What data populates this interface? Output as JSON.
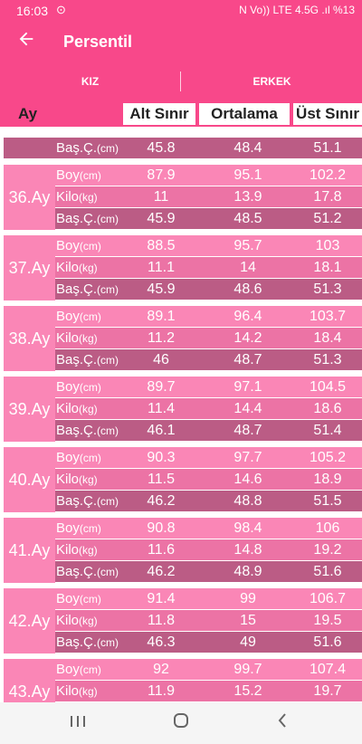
{
  "status": {
    "time": "16:03",
    "right": "N  Vo)) LTE 4.5G .ıl %13"
  },
  "appbar": {
    "back_icon": "arrow-left-icon",
    "title": "Persentil"
  },
  "tabs": [
    {
      "label": "KIZ",
      "active": true
    },
    {
      "label": "ERKEK",
      "active": false
    }
  ],
  "table_header": {
    "ay": "Ay",
    "alt": "Alt Sınır",
    "ort": "Ortalama",
    "ust": "Üst Sınır"
  },
  "labels": {
    "boy": "Boy",
    "boy_unit": "(cm)",
    "kilo": "Kilo",
    "kilo_unit": "(kg)",
    "bas": "Baş.Ç.",
    "bas_unit": "(cm)"
  },
  "partial_top": {
    "bas": [
      "45.8",
      "48.4",
      "51.1"
    ]
  },
  "groups": [
    {
      "age": "36.Ay",
      "boy": [
        "87.9",
        "95.1",
        "102.2"
      ],
      "kilo": [
        "11",
        "13.9",
        "17.8"
      ],
      "bas": [
        "45.9",
        "48.5",
        "51.2"
      ]
    },
    {
      "age": "37.Ay",
      "boy": [
        "88.5",
        "95.7",
        "103"
      ],
      "kilo": [
        "11.1",
        "14",
        "18.1"
      ],
      "bas": [
        "45.9",
        "48.6",
        "51.3"
      ]
    },
    {
      "age": "38.Ay",
      "boy": [
        "89.1",
        "96.4",
        "103.7"
      ],
      "kilo": [
        "11.2",
        "14.2",
        "18.4"
      ],
      "bas": [
        "46",
        "48.7",
        "51.3"
      ]
    },
    {
      "age": "39.Ay",
      "boy": [
        "89.7",
        "97.1",
        "104.5"
      ],
      "kilo": [
        "11.4",
        "14.4",
        "18.6"
      ],
      "bas": [
        "46.1",
        "48.7",
        "51.4"
      ]
    },
    {
      "age": "40.Ay",
      "boy": [
        "90.3",
        "97.7",
        "105.2"
      ],
      "kilo": [
        "11.5",
        "14.6",
        "18.9"
      ],
      "bas": [
        "46.2",
        "48.8",
        "51.5"
      ]
    },
    {
      "age": "41.Ay",
      "boy": [
        "90.8",
        "98.4",
        "106"
      ],
      "kilo": [
        "11.6",
        "14.8",
        "19.2"
      ],
      "bas": [
        "46.2",
        "48.9",
        "51.6"
      ]
    },
    {
      "age": "42.Ay",
      "boy": [
        "91.4",
        "99",
        "106.7"
      ],
      "kilo": [
        "11.8",
        "15",
        "19.5"
      ],
      "bas": [
        "46.3",
        "49",
        "51.6"
      ]
    },
    {
      "age": "43.Ay",
      "boy": [
        "92",
        "99.7",
        "107.4"
      ],
      "kilo": [
        "11.9",
        "15.2",
        "19.7"
      ],
      "bas": [
        "",
        "",
        ""
      ]
    }
  ],
  "navbar": {
    "recents": "recents-icon",
    "home": "home-icon",
    "back": "back-icon"
  }
}
